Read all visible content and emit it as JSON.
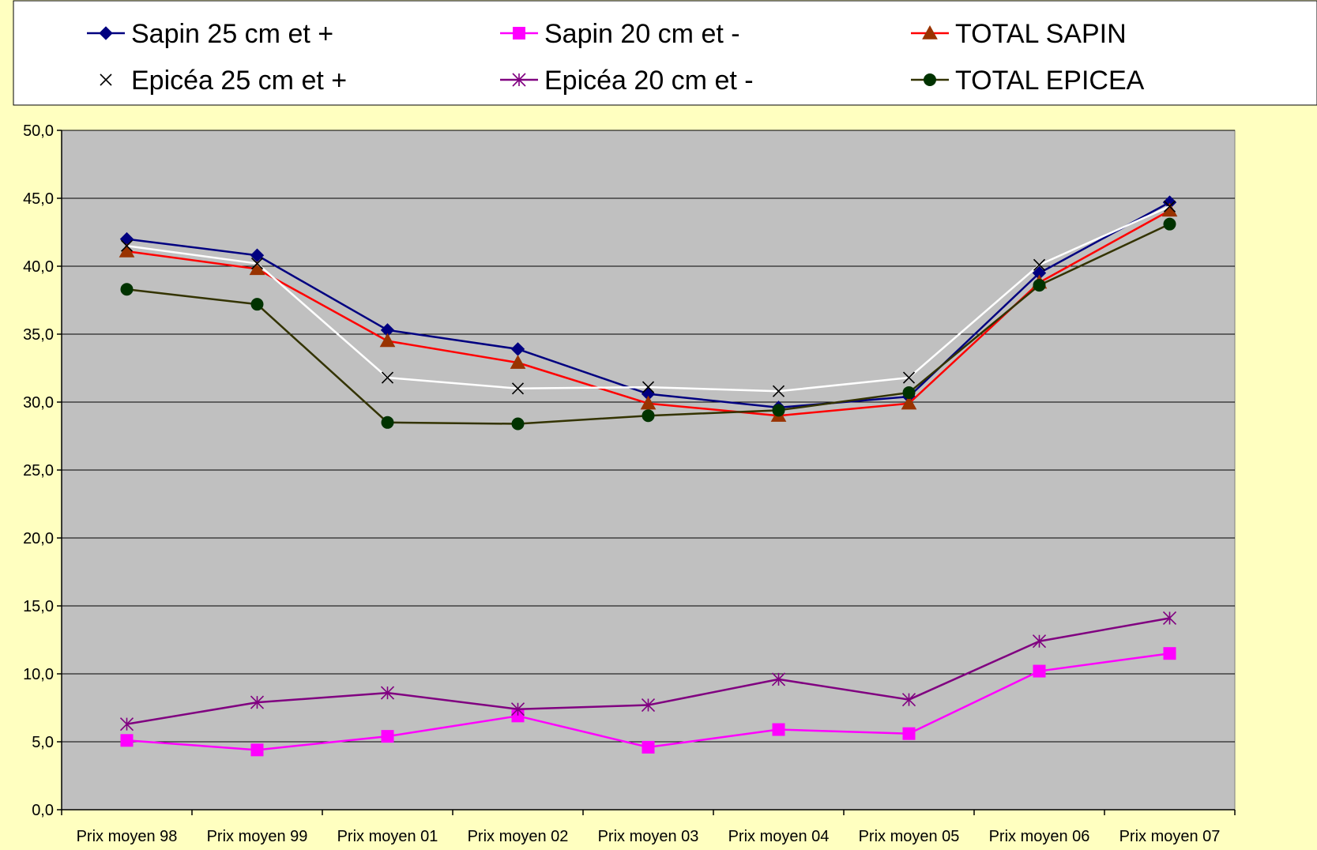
{
  "chart_data": {
    "type": "line",
    "title": "",
    "xlabel": "",
    "ylabel": "",
    "categories": [
      "Prix moyen 98",
      "Prix moyen 99",
      "Prix moyen 01",
      "Prix moyen 02",
      "Prix moyen 03",
      "Prix moyen 04",
      "Prix moyen 05",
      "Prix moyen 06",
      "Prix moyen 07"
    ],
    "ylim": [
      0,
      50
    ],
    "yticks": [
      "0,0",
      "5,0",
      "10,0",
      "15,0",
      "20,0",
      "25,0",
      "30,0",
      "35,0",
      "40,0",
      "45,0",
      "50,0"
    ],
    "grid": true,
    "legend_position": "top",
    "plot_background": "#c0c0c0",
    "page_background": "#ffffc0",
    "series": [
      {
        "name": "Sapin 25 cm et +",
        "color": "#000080",
        "marker": "diamond",
        "values": [
          42.0,
          40.8,
          35.3,
          33.9,
          30.6,
          29.6,
          30.4,
          39.5,
          44.7
        ]
      },
      {
        "name": "Sapin 20 cm et -",
        "color": "#ff00ff",
        "marker": "square",
        "values": [
          5.1,
          4.4,
          5.4,
          6.9,
          4.6,
          5.9,
          5.6,
          10.2,
          11.5
        ]
      },
      {
        "name": "TOTAL SAPIN",
        "color": "#ff0000",
        "marker_color": "#993300",
        "marker": "triangle",
        "values": [
          41.1,
          39.8,
          34.5,
          32.9,
          29.9,
          29.0,
          29.9,
          38.8,
          44.1
        ]
      },
      {
        "name": "Epicéa 25 cm et +",
        "color": "#ffffff",
        "marker_color": "#000000",
        "marker": "x",
        "values": [
          41.5,
          40.2,
          31.8,
          31.0,
          31.1,
          30.8,
          31.8,
          40.1,
          44.4
        ]
      },
      {
        "name": "Epicéa 20 cm et -",
        "color": "#800080",
        "marker": "star",
        "values": [
          6.3,
          7.9,
          8.6,
          7.4,
          7.7,
          9.6,
          8.1,
          12.4,
          14.1
        ]
      },
      {
        "name": "TOTAL EPICEA",
        "color": "#333300",
        "marker_color": "#003300",
        "marker": "circle",
        "values": [
          38.3,
          37.2,
          28.5,
          28.4,
          29.0,
          29.4,
          30.7,
          38.6,
          43.1
        ]
      }
    ]
  }
}
